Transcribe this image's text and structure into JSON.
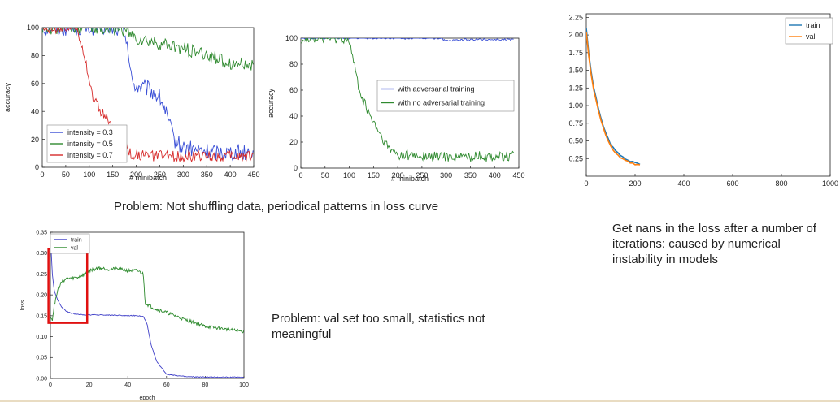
{
  "captions": {
    "shuffle": "Problem: Not shuffling data, periodical patterns in loss curve",
    "nans": "Get nans in the loss after a number of iterations: caused by numerical instability in models",
    "valset": "Problem: val set too small, statistics not meaningful"
  },
  "chart_data": [
    {
      "type": "line",
      "title": "",
      "xlabel": "# minibatch",
      "ylabel": "accuracy",
      "xlim": [
        0,
        450
      ],
      "ylim": [
        0,
        100
      ],
      "xticks": [
        0,
        50,
        100,
        150,
        200,
        250,
        300,
        350,
        400,
        450
      ],
      "yticks": [
        0,
        20,
        40,
        60,
        80,
        100
      ],
      "grid": false,
      "legend": "lower-left",
      "series": [
        {
          "name": "intensity = 0.3",
          "color": "#3a4fd6",
          "x": [
            0,
            150,
            170,
            180,
            185,
            190,
            200,
            225,
            250,
            260,
            280,
            300,
            330,
            360,
            400,
            450
          ],
          "y": [
            100,
            100,
            98,
            94,
            75,
            62,
            58,
            56,
            50,
            42,
            20,
            14,
            12,
            11,
            11,
            11
          ]
        },
        {
          "name": "intensity = 0.5",
          "color": "#2f8a2f",
          "x": [
            0,
            160,
            180,
            190,
            200,
            250,
            300,
            350,
            400,
            450
          ],
          "y": [
            100,
            100,
            97,
            94,
            92,
            88,
            85,
            80,
            75,
            72
          ]
        },
        {
          "name": "intensity = 0.7",
          "color": "#d62a2a",
          "x": [
            0,
            75,
            90,
            100,
            110,
            130,
            150,
            170,
            190,
            220,
            300,
            450
          ],
          "y": [
            100,
            100,
            80,
            62,
            48,
            38,
            28,
            18,
            10,
            8,
            8,
            8
          ]
        }
      ]
    },
    {
      "type": "line",
      "title": "",
      "xlabel": "# minibatch",
      "ylabel": "accuracy",
      "xlim": [
        0,
        450
      ],
      "ylim": [
        0,
        100
      ],
      "xticks": [
        0,
        50,
        100,
        150,
        200,
        250,
        300,
        350,
        400,
        450
      ],
      "yticks": [
        0,
        20,
        40,
        60,
        80,
        100
      ],
      "grid": false,
      "legend": "center-right",
      "series": [
        {
          "name": "with adversarial training",
          "color": "#3a4fd6",
          "x": [
            0,
            100,
            200,
            290,
            300,
            350,
            400,
            440
          ],
          "y": [
            100,
            100,
            100,
            100,
            98,
            99,
            99,
            99
          ]
        },
        {
          "name": "with no adversarial training",
          "color": "#2f8a2f",
          "x": [
            0,
            95,
            105,
            115,
            125,
            140,
            160,
            180,
            200,
            250,
            300,
            350,
            400,
            440
          ],
          "y": [
            100,
            100,
            90,
            70,
            55,
            42,
            28,
            15,
            10,
            9,
            9,
            9,
            9,
            9
          ]
        }
      ]
    },
    {
      "type": "line",
      "title": "",
      "xlabel": "",
      "ylabel": "",
      "xlim": [
        0,
        1000
      ],
      "ylim": [
        0.0,
        2.3
      ],
      "xticks": [
        0,
        200,
        400,
        600,
        800,
        1000
      ],
      "xtick_labels": [
        "0",
        "200",
        "400",
        "600",
        "800",
        "1000"
      ],
      "yticks": [
        0.25,
        0.5,
        0.75,
        1.0,
        1.25,
        1.5,
        1.75,
        2.0,
        2.25
      ],
      "ytick_labels": [
        "0.25",
        "0.50",
        "0.75",
        "1.00",
        "1.25",
        "1.50",
        "1.75",
        "2.00",
        "2.25"
      ],
      "grid": false,
      "legend": "top-right",
      "series": [
        {
          "name": "train",
          "color": "#1f77b4",
          "x": [
            0,
            10,
            25,
            50,
            75,
            100,
            125,
            150,
            175,
            200,
            225
          ],
          "y": [
            2.1,
            1.75,
            1.35,
            0.95,
            0.65,
            0.45,
            0.34,
            0.27,
            0.22,
            0.19,
            0.17
          ]
        },
        {
          "name": "val",
          "color": "#ff7f0e",
          "x": [
            0,
            10,
            25,
            50,
            75,
            100,
            125,
            150,
            175,
            200,
            225
          ],
          "y": [
            2.05,
            1.7,
            1.3,
            0.92,
            0.62,
            0.42,
            0.31,
            0.24,
            0.2,
            0.17,
            0.15
          ]
        }
      ]
    },
    {
      "type": "line",
      "title": "",
      "xlabel": "epoch",
      "ylabel": "loss",
      "xlim": [
        0,
        100
      ],
      "ylim": [
        0.0,
        0.35
      ],
      "xticks": [
        0,
        20,
        40,
        60,
        80,
        100
      ],
      "yticks": [
        0.0,
        0.05,
        0.1,
        0.15,
        0.2,
        0.25,
        0.3,
        0.35
      ],
      "ytick_labels": [
        "0.00",
        "0.05",
        "0.10",
        "0.15",
        "0.20",
        "0.25",
        "0.30",
        "0.35"
      ],
      "grid": false,
      "legend": "top-left",
      "highlight_box": {
        "x0": -1,
        "x1": 19,
        "y0": 0.133,
        "y1": 0.31,
        "color": "#e01010"
      },
      "series": [
        {
          "name": "train",
          "color": "#4040c8",
          "x": [
            0,
            1,
            2,
            4,
            6,
            8,
            10,
            14,
            18,
            25,
            35,
            45,
            48,
            50,
            52,
            55,
            60,
            70,
            80,
            90,
            100
          ],
          "y": [
            0.34,
            0.25,
            0.21,
            0.185,
            0.17,
            0.162,
            0.157,
            0.153,
            0.152,
            0.152,
            0.151,
            0.15,
            0.148,
            0.13,
            0.08,
            0.04,
            0.01,
            0.004,
            0.003,
            0.003,
            0.003
          ]
        },
        {
          "name": "val",
          "color": "#2e8b2e",
          "x": [
            0,
            1,
            2,
            4,
            6,
            8,
            10,
            14,
            18,
            20,
            25,
            30,
            35,
            40,
            45,
            48,
            49,
            52,
            55,
            60,
            70,
            80,
            90,
            100
          ],
          "y": [
            0.15,
            0.14,
            0.175,
            0.215,
            0.232,
            0.238,
            0.24,
            0.242,
            0.25,
            0.258,
            0.265,
            0.262,
            0.262,
            0.258,
            0.258,
            0.25,
            0.18,
            0.172,
            0.165,
            0.158,
            0.14,
            0.125,
            0.118,
            0.112
          ]
        }
      ]
    }
  ]
}
